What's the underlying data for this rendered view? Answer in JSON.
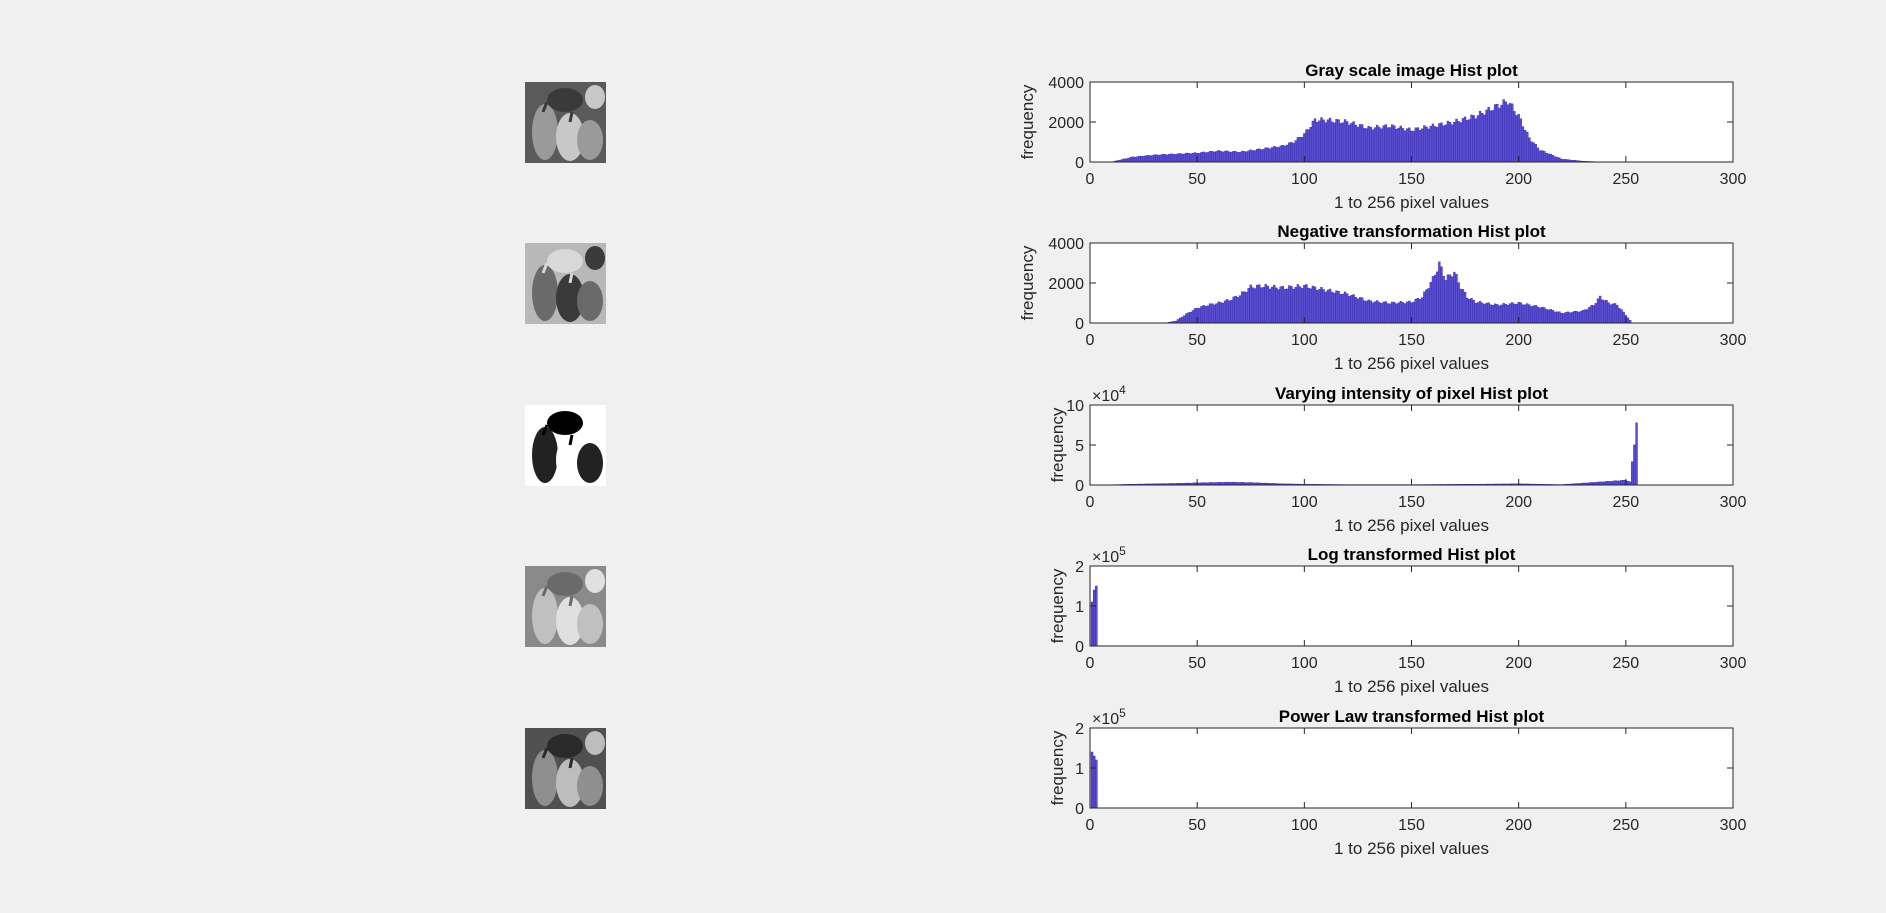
{
  "thumbnails": [
    {
      "name": "grayscale-image",
      "tone": "#7a7a7a"
    },
    {
      "name": "negative-image",
      "tone": "#9a9a9a"
    },
    {
      "name": "intensity-sliced-image",
      "tone": "#d0d0d0"
    },
    {
      "name": "log-transformed-image",
      "tone": "#a0a0a0"
    },
    {
      "name": "power-law-image",
      "tone": "#707070"
    }
  ],
  "colors": {
    "bar_face": "#5a4fd0",
    "bar_edge": "#3526b0",
    "axes_bg": "#ffffff",
    "figure_bg": "#f0f0f0"
  },
  "chart_data": [
    {
      "type": "bar",
      "title": "Gray scale image Hist plot",
      "xlabel": "1 to 256 pixel values",
      "ylabel": "frequency",
      "xlim": [
        0,
        300
      ],
      "ylim": [
        0,
        4000
      ],
      "xticks": [
        "0",
        "50",
        "100",
        "150",
        "200",
        "250",
        "300"
      ],
      "yticks": [
        "0",
        "2000",
        "4000"
      ],
      "exponent_label": "",
      "x": [
        10,
        20,
        30,
        40,
        50,
        60,
        70,
        80,
        90,
        95,
        100,
        105,
        110,
        120,
        130,
        140,
        150,
        160,
        170,
        180,
        190,
        195,
        200,
        205,
        210,
        220,
        230,
        240
      ],
      "values": [
        0,
        250,
        350,
        400,
        450,
        550,
        500,
        650,
        800,
        1000,
        1400,
        2100,
        2100,
        2000,
        1700,
        1800,
        1600,
        1800,
        2000,
        2300,
        2800,
        3050,
        2300,
        1200,
        600,
        150,
        40,
        0
      ]
    },
    {
      "type": "bar",
      "title": "Negative transformation Hist plot",
      "xlabel": "1 to 256 pixel values",
      "ylabel": "frequency",
      "xlim": [
        0,
        300
      ],
      "ylim": [
        0,
        4000
      ],
      "xticks": [
        "0",
        "50",
        "100",
        "150",
        "200",
        "250",
        "300"
      ],
      "yticks": [
        "0",
        "2000",
        "4000"
      ],
      "exponent_label": "",
      "x": [
        35,
        40,
        45,
        50,
        55,
        60,
        65,
        70,
        75,
        80,
        90,
        100,
        110,
        120,
        130,
        140,
        150,
        155,
        160,
        163,
        166,
        170,
        173,
        176,
        180,
        190,
        200,
        210,
        220,
        230,
        235,
        238,
        242,
        246,
        250,
        253
      ],
      "values": [
        0,
        100,
        450,
        750,
        900,
        1000,
        1150,
        1400,
        1800,
        1850,
        1750,
        1850,
        1650,
        1450,
        1100,
        1000,
        1050,
        1300,
        2200,
        2950,
        2200,
        2550,
        1800,
        1300,
        1050,
        900,
        1000,
        800,
        500,
        600,
        900,
        1300,
        1000,
        900,
        400,
        0
      ]
    },
    {
      "type": "bar",
      "title": "Varying intensity of pixel Hist plot",
      "xlabel": "1 to 256 pixel values",
      "ylabel": "frequency",
      "xlim": [
        0,
        300
      ],
      "ylim": [
        0,
        10
      ],
      "xticks": [
        "0",
        "50",
        "100",
        "150",
        "200",
        "250",
        "300"
      ],
      "yticks": [
        "0",
        "5",
        "10"
      ],
      "exponent_label": "×10^4",
      "exponent_base": "×10",
      "exponent_power": "4",
      "x": [
        5,
        20,
        40,
        55,
        65,
        75,
        90,
        100,
        120,
        150,
        180,
        200,
        220,
        250,
        252,
        255
      ],
      "values": [
        0,
        0.1,
        0.2,
        0.3,
        0.35,
        0.3,
        0.15,
        0.1,
        0.05,
        0.05,
        0.1,
        0.15,
        0.05,
        0.6,
        0.4,
        7.8
      ]
    },
    {
      "type": "bar",
      "title": "Log transformed Hist plot",
      "xlabel": "1 to 256 pixel values",
      "ylabel": "frequency",
      "xlim": [
        0,
        300
      ],
      "ylim": [
        0,
        2
      ],
      "xticks": [
        "0",
        "50",
        "100",
        "150",
        "200",
        "250",
        "300"
      ],
      "yticks": [
        "0",
        "1",
        "2"
      ],
      "exponent_label": "×10^5",
      "exponent_base": "×10",
      "exponent_power": "5",
      "x": [
        1,
        2,
        3
      ],
      "values": [
        1.1,
        1.4,
        1.5
      ]
    },
    {
      "type": "bar",
      "title": "Power Law transformed Hist plot",
      "xlabel": "1 to 256 pixel values",
      "ylabel": "frequency",
      "xlim": [
        0,
        300
      ],
      "ylim": [
        0,
        2
      ],
      "xticks": [
        "0",
        "50",
        "100",
        "150",
        "200",
        "250",
        "300"
      ],
      "yticks": [
        "0",
        "1",
        "2"
      ],
      "exponent_label": "×10^5",
      "exponent_base": "×10",
      "exponent_power": "5",
      "x": [
        1,
        2,
        3
      ],
      "values": [
        1.4,
        1.3,
        1.2
      ]
    }
  ]
}
